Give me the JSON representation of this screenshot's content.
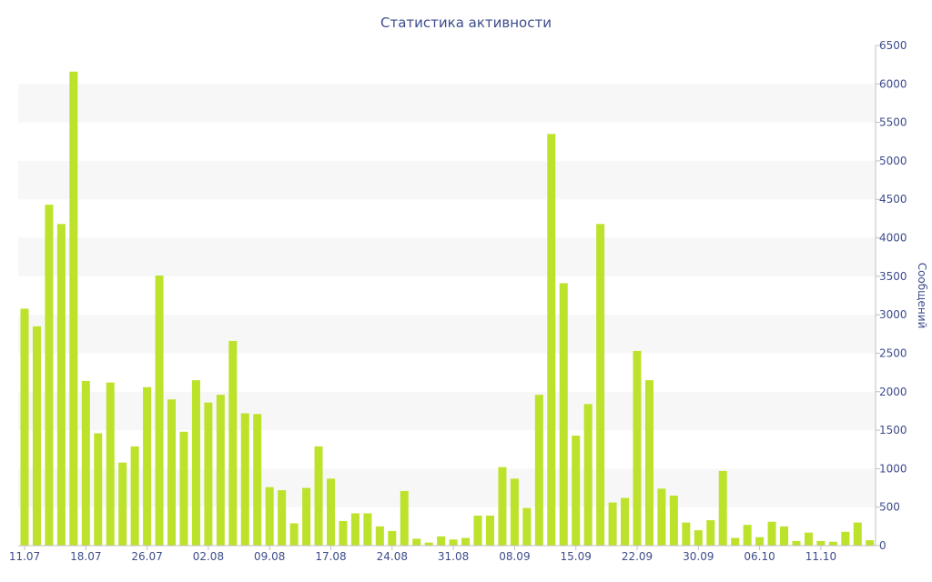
{
  "chart_data": {
    "type": "bar",
    "title": "Статистика активности",
    "xlabel": "",
    "ylabel": "Сообщений",
    "ylim": [
      0,
      6500
    ],
    "y_ticks": [
      0,
      500,
      1000,
      1500,
      2000,
      2500,
      3000,
      3500,
      4000,
      4500,
      5000,
      5500,
      6000,
      6500
    ],
    "y_axis_side": "right",
    "grid": "alternating horizontal bands",
    "bar_color": "#bce22b",
    "band_color": "#f7f7f7",
    "text_color": "#3e4d8c",
    "x_tick_labels": [
      {
        "index": 0,
        "label": "11.07"
      },
      {
        "index": 5,
        "label": "18.07"
      },
      {
        "index": 10,
        "label": "26.07"
      },
      {
        "index": 15,
        "label": "02.08"
      },
      {
        "index": 20,
        "label": "09.08"
      },
      {
        "index": 25,
        "label": "17.08"
      },
      {
        "index": 30,
        "label": "24.08"
      },
      {
        "index": 35,
        "label": "31.08"
      },
      {
        "index": 40,
        "label": "08.09"
      },
      {
        "index": 45,
        "label": "15.09"
      },
      {
        "index": 50,
        "label": "22.09"
      },
      {
        "index": 55,
        "label": "30.09"
      },
      {
        "index": 60,
        "label": "06.10"
      },
      {
        "index": 65,
        "label": "11.10"
      }
    ],
    "values": [
      3080,
      2850,
      4430,
      4180,
      6160,
      2140,
      1460,
      2120,
      1080,
      1290,
      2060,
      3510,
      1900,
      1480,
      2150,
      1860,
      1960,
      2660,
      1720,
      1710,
      760,
      720,
      290,
      750,
      1290,
      870,
      320,
      420,
      420,
      250,
      190,
      710,
      90,
      40,
      120,
      80,
      100,
      390,
      390,
      1020,
      870,
      490,
      1960,
      5350,
      3410,
      1430,
      1840,
      4180,
      560,
      620,
      2530,
      2150,
      740,
      650,
      300,
      200,
      330,
      970,
      100,
      270,
      110,
      310,
      250,
      60,
      170,
      60,
      50,
      180,
      300,
      70
    ]
  }
}
